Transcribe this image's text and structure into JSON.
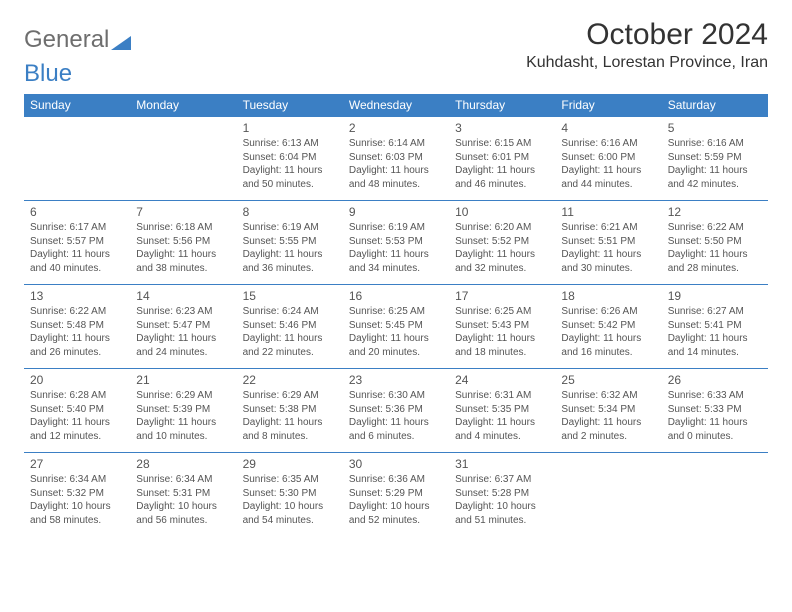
{
  "logo": {
    "text_general": "General",
    "text_blue": "Blue"
  },
  "header": {
    "month_title": "October 2024",
    "location": "Kuhdasht, Lorestan Province, Iran"
  },
  "colors": {
    "accent": "#3b7fc4",
    "header_text": "#ffffff",
    "body_text": "#555555",
    "title_text": "#333333",
    "background": "#ffffff"
  },
  "day_labels": [
    "Sunday",
    "Monday",
    "Tuesday",
    "Wednesday",
    "Thursday",
    "Friday",
    "Saturday"
  ],
  "weeks": [
    [
      null,
      null,
      {
        "n": "1",
        "sr": "Sunrise: 6:13 AM",
        "ss": "Sunset: 6:04 PM",
        "d1": "Daylight: 11 hours",
        "d2": "and 50 minutes."
      },
      {
        "n": "2",
        "sr": "Sunrise: 6:14 AM",
        "ss": "Sunset: 6:03 PM",
        "d1": "Daylight: 11 hours",
        "d2": "and 48 minutes."
      },
      {
        "n": "3",
        "sr": "Sunrise: 6:15 AM",
        "ss": "Sunset: 6:01 PM",
        "d1": "Daylight: 11 hours",
        "d2": "and 46 minutes."
      },
      {
        "n": "4",
        "sr": "Sunrise: 6:16 AM",
        "ss": "Sunset: 6:00 PM",
        "d1": "Daylight: 11 hours",
        "d2": "and 44 minutes."
      },
      {
        "n": "5",
        "sr": "Sunrise: 6:16 AM",
        "ss": "Sunset: 5:59 PM",
        "d1": "Daylight: 11 hours",
        "d2": "and 42 minutes."
      }
    ],
    [
      {
        "n": "6",
        "sr": "Sunrise: 6:17 AM",
        "ss": "Sunset: 5:57 PM",
        "d1": "Daylight: 11 hours",
        "d2": "and 40 minutes."
      },
      {
        "n": "7",
        "sr": "Sunrise: 6:18 AM",
        "ss": "Sunset: 5:56 PM",
        "d1": "Daylight: 11 hours",
        "d2": "and 38 minutes."
      },
      {
        "n": "8",
        "sr": "Sunrise: 6:19 AM",
        "ss": "Sunset: 5:55 PM",
        "d1": "Daylight: 11 hours",
        "d2": "and 36 minutes."
      },
      {
        "n": "9",
        "sr": "Sunrise: 6:19 AM",
        "ss": "Sunset: 5:53 PM",
        "d1": "Daylight: 11 hours",
        "d2": "and 34 minutes."
      },
      {
        "n": "10",
        "sr": "Sunrise: 6:20 AM",
        "ss": "Sunset: 5:52 PM",
        "d1": "Daylight: 11 hours",
        "d2": "and 32 minutes."
      },
      {
        "n": "11",
        "sr": "Sunrise: 6:21 AM",
        "ss": "Sunset: 5:51 PM",
        "d1": "Daylight: 11 hours",
        "d2": "and 30 minutes."
      },
      {
        "n": "12",
        "sr": "Sunrise: 6:22 AM",
        "ss": "Sunset: 5:50 PM",
        "d1": "Daylight: 11 hours",
        "d2": "and 28 minutes."
      }
    ],
    [
      {
        "n": "13",
        "sr": "Sunrise: 6:22 AM",
        "ss": "Sunset: 5:48 PM",
        "d1": "Daylight: 11 hours",
        "d2": "and 26 minutes."
      },
      {
        "n": "14",
        "sr": "Sunrise: 6:23 AM",
        "ss": "Sunset: 5:47 PM",
        "d1": "Daylight: 11 hours",
        "d2": "and 24 minutes."
      },
      {
        "n": "15",
        "sr": "Sunrise: 6:24 AM",
        "ss": "Sunset: 5:46 PM",
        "d1": "Daylight: 11 hours",
        "d2": "and 22 minutes."
      },
      {
        "n": "16",
        "sr": "Sunrise: 6:25 AM",
        "ss": "Sunset: 5:45 PM",
        "d1": "Daylight: 11 hours",
        "d2": "and 20 minutes."
      },
      {
        "n": "17",
        "sr": "Sunrise: 6:25 AM",
        "ss": "Sunset: 5:43 PM",
        "d1": "Daylight: 11 hours",
        "d2": "and 18 minutes."
      },
      {
        "n": "18",
        "sr": "Sunrise: 6:26 AM",
        "ss": "Sunset: 5:42 PM",
        "d1": "Daylight: 11 hours",
        "d2": "and 16 minutes."
      },
      {
        "n": "19",
        "sr": "Sunrise: 6:27 AM",
        "ss": "Sunset: 5:41 PM",
        "d1": "Daylight: 11 hours",
        "d2": "and 14 minutes."
      }
    ],
    [
      {
        "n": "20",
        "sr": "Sunrise: 6:28 AM",
        "ss": "Sunset: 5:40 PM",
        "d1": "Daylight: 11 hours",
        "d2": "and 12 minutes."
      },
      {
        "n": "21",
        "sr": "Sunrise: 6:29 AM",
        "ss": "Sunset: 5:39 PM",
        "d1": "Daylight: 11 hours",
        "d2": "and 10 minutes."
      },
      {
        "n": "22",
        "sr": "Sunrise: 6:29 AM",
        "ss": "Sunset: 5:38 PM",
        "d1": "Daylight: 11 hours",
        "d2": "and 8 minutes."
      },
      {
        "n": "23",
        "sr": "Sunrise: 6:30 AM",
        "ss": "Sunset: 5:36 PM",
        "d1": "Daylight: 11 hours",
        "d2": "and 6 minutes."
      },
      {
        "n": "24",
        "sr": "Sunrise: 6:31 AM",
        "ss": "Sunset: 5:35 PM",
        "d1": "Daylight: 11 hours",
        "d2": "and 4 minutes."
      },
      {
        "n": "25",
        "sr": "Sunrise: 6:32 AM",
        "ss": "Sunset: 5:34 PM",
        "d1": "Daylight: 11 hours",
        "d2": "and 2 minutes."
      },
      {
        "n": "26",
        "sr": "Sunrise: 6:33 AM",
        "ss": "Sunset: 5:33 PM",
        "d1": "Daylight: 11 hours",
        "d2": "and 0 minutes."
      }
    ],
    [
      {
        "n": "27",
        "sr": "Sunrise: 6:34 AM",
        "ss": "Sunset: 5:32 PM",
        "d1": "Daylight: 10 hours",
        "d2": "and 58 minutes."
      },
      {
        "n": "28",
        "sr": "Sunrise: 6:34 AM",
        "ss": "Sunset: 5:31 PM",
        "d1": "Daylight: 10 hours",
        "d2": "and 56 minutes."
      },
      {
        "n": "29",
        "sr": "Sunrise: 6:35 AM",
        "ss": "Sunset: 5:30 PM",
        "d1": "Daylight: 10 hours",
        "d2": "and 54 minutes."
      },
      {
        "n": "30",
        "sr": "Sunrise: 6:36 AM",
        "ss": "Sunset: 5:29 PM",
        "d1": "Daylight: 10 hours",
        "d2": "and 52 minutes."
      },
      {
        "n": "31",
        "sr": "Sunrise: 6:37 AM",
        "ss": "Sunset: 5:28 PM",
        "d1": "Daylight: 10 hours",
        "d2": "and 51 minutes."
      },
      null,
      null
    ]
  ]
}
